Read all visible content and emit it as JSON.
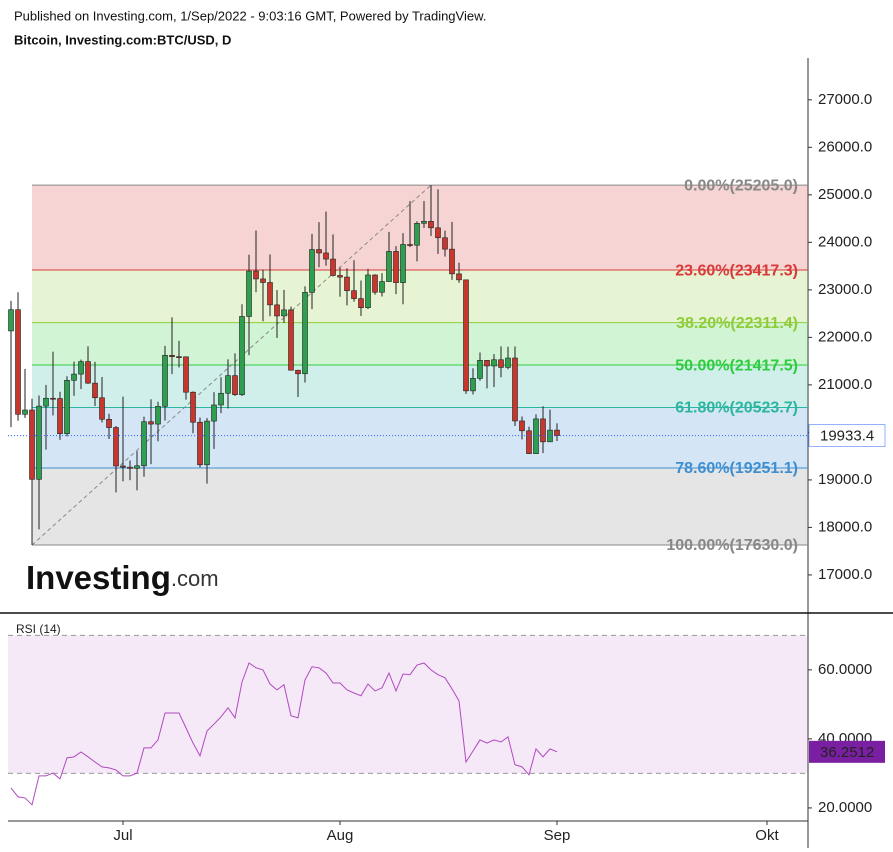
{
  "chart_data": [
    {
      "type": "candlestick",
      "title": "Published on Investing.com, 1/Sep/2022 - 9:03:16 GMT, Powered by TradingView.",
      "subtitle": "Bitcoin, Investing.com:BTC/USD, D",
      "logo": {
        "name": "Investing",
        "suffix": ".com"
      },
      "categories": [
        null,
        null,
        null,
        null,
        null,
        null,
        null,
        null,
        null,
        null,
        null,
        null,
        null,
        null,
        null,
        null,
        null,
        null,
        null,
        null,
        null,
        null,
        null,
        null,
        null,
        null,
        null,
        null,
        null,
        null,
        null,
        null,
        null,
        null,
        null,
        null,
        null,
        null,
        null,
        null,
        null,
        null,
        null,
        null,
        null,
        null,
        null,
        null,
        null,
        null,
        null,
        null,
        null,
        null,
        null,
        null,
        null,
        null,
        null,
        null,
        null,
        null,
        null,
        null,
        null,
        null,
        null,
        null,
        null,
        null,
        null,
        null,
        null,
        null,
        null,
        null,
        null,
        null,
        null
      ],
      "xlim": [
        -0.43,
        113.86
      ],
      "xticks": [
        {
          "value": 16,
          "label": "Jul"
        },
        {
          "value": 47,
          "label": "Aug"
        },
        {
          "value": 78,
          "label": "Sep"
        },
        {
          "value": 108,
          "label": "Okt"
        }
      ],
      "ylim": [
        16220,
        27880
      ],
      "yticks": [
        {
          "value": 17000,
          "label": "17000.0"
        },
        {
          "value": 18000,
          "label": "18000.0"
        },
        {
          "value": 19000,
          "label": "19000.0"
        },
        {
          "value": 20000,
          "label": "20000.0"
        },
        {
          "value": 21000,
          "label": "21000.0"
        },
        {
          "value": 22000,
          "label": "22000.0"
        },
        {
          "value": 23000,
          "label": "23000.0"
        },
        {
          "value": 24000,
          "label": "24000.0"
        },
        {
          "value": 25000,
          "label": "25000.0"
        },
        {
          "value": 26000,
          "label": "26000.0"
        },
        {
          "value": 27000,
          "label": "27000.0"
        }
      ],
      "up_color": "#2e9e4f",
      "down_color": "#c8372d",
      "last_price_color": "#2962ff",
      "open": [
        22136,
        22583,
        20381,
        20471,
        19013,
        20553,
        20719,
        20712,
        19973,
        21097,
        21227,
        21490,
        21037,
        20729,
        20276,
        20102,
        19293,
        19269,
        19243,
        19297,
        20225,
        20175,
        20548,
        21623,
        21594,
        21591,
        20846,
        20214,
        19318,
        20238,
        20577,
        20824,
        21195,
        20793,
        22440,
        23396,
        23230,
        23155,
        22684,
        22451,
        22579,
        21309,
        21234,
        22947,
        23849,
        23777,
        23648,
        23303,
        23269,
        22983,
        22816,
        22625,
        23313,
        22950,
        23175,
        23809,
        23153,
        23955,
        23940,
        24401,
        24443,
        24306,
        24097,
        23857,
        23337,
        23211,
        20874,
        21138,
        21517,
        21399,
        21529,
        21368,
        21565,
        20241,
        20034,
        19553,
        20284,
        19802,
        20048
      ],
      "high": [
        22770,
        22950,
        21336,
        20707,
        20776,
        21000,
        21700,
        20855,
        21182,
        21490,
        21532,
        21812,
        21485,
        21167,
        20392,
        20135,
        20754,
        19409,
        19603,
        20331,
        20698,
        20645,
        21822,
        22422,
        21928,
        21594,
        20864,
        20313,
        20301,
        20847,
        21161,
        21538,
        21663,
        22698,
        23741,
        24250,
        23425,
        23744,
        22996,
        23000,
        22648,
        21315,
        23075,
        24179,
        24425,
        24647,
        24166,
        23467,
        23454,
        23624,
        23197,
        23444,
        23328,
        23351,
        24220,
        23921,
        24194,
        24867,
        24443,
        24868,
        25205,
        25116,
        24247,
        24430,
        23573,
        23211,
        21350,
        21683,
        21519,
        21648,
        21810,
        21803,
        21809,
        20335,
        20120,
        20380,
        20550,
        20478,
        20191
      ],
      "low": [
        20111,
        20246,
        20305,
        17630,
        17958,
        19637,
        20358,
        19844,
        19916,
        20769,
        20913,
        21020,
        20554,
        20210,
        19861,
        18737,
        18970,
        18994,
        18781,
        19066,
        19331,
        19813,
        20249,
        21227,
        21367,
        20689,
        19982,
        19264,
        18923,
        19652,
        20405,
        20504,
        20768,
        20767,
        21626,
        22950,
        22340,
        22445,
        21988,
        22304,
        21329,
        20745,
        21049,
        22594,
        23478,
        23508,
        23282,
        22856,
        22673,
        22752,
        22451,
        22595,
        22898,
        22860,
        23175,
        22909,
        22697,
        23900,
        23600,
        24305,
        24132,
        23758,
        23700,
        23212,
        23150,
        20811,
        20798,
        21089,
        20926,
        20955,
        21161,
        21329,
        20135,
        19852,
        19600,
        19553,
        19564,
        19801,
        19820
      ],
      "close": [
        22583,
        20381,
        20471,
        19013,
        20553,
        20719,
        20712,
        19973,
        21097,
        21227,
        21490,
        21037,
        20729,
        20276,
        20102,
        19293,
        19269,
        19243,
        19297,
        20225,
        20175,
        20548,
        21623,
        21594,
        21591,
        20846,
        20214,
        19318,
        20238,
        20577,
        20824,
        21195,
        20793,
        22440,
        23396,
        23230,
        23155,
        22684,
        22451,
        22579,
        21309,
        21234,
        22947,
        23849,
        23777,
        23648,
        23303,
        23269,
        22983,
        22816,
        22625,
        23313,
        22950,
        23175,
        23809,
        23153,
        23955,
        23940,
        24401,
        24443,
        24306,
        24097,
        23857,
        23337,
        23211,
        20874,
        21138,
        21517,
        21399,
        21529,
        21368,
        21565,
        20241,
        20034,
        19553,
        20284,
        19802,
        20048,
        19933.4
      ],
      "fib_levels": [
        {
          "label": "0.00%(25205.0)",
          "value": 25205.0,
          "color": "#888888"
        },
        {
          "label": "23.60%(23417.3)",
          "value": 23417.3,
          "color": "#d83a3a"
        },
        {
          "label": "38.20%(22311.4)",
          "value": 22311.4,
          "color": "#8fcc3a"
        },
        {
          "label": "50.00%(21417.5)",
          "value": 21417.5,
          "color": "#2ecc40"
        },
        {
          "label": "61.80%(20523.7)",
          "value": 20523.7,
          "color": "#2cb5a0"
        },
        {
          "label": "78.60%(19251.1)",
          "value": 19251.1,
          "color": "#3d8fd1"
        },
        {
          "label": "100.00%(17630.0)",
          "value": 17630.0,
          "color": "#888888"
        }
      ]
    },
    {
      "type": "line",
      "title": "RSI (14)",
      "color": "#b04ac0",
      "ylim": [
        16.5,
        75.9
      ],
      "yticks": [
        {
          "value": 20,
          "label": "20.0000"
        },
        {
          "value": 40,
          "label": "40.0000"
        },
        {
          "value": 60,
          "label": "60.0000"
        }
      ],
      "levels": [
        30,
        70
      ],
      "values": [
        25.8,
        23.2,
        22.9,
        20.9,
        29.3,
        29.3,
        30.1,
        28.4,
        34.5,
        34.8,
        36.2,
        34.8,
        33.3,
        31.9,
        31.6,
        31.0,
        29.3,
        29.3,
        30.1,
        37.4,
        37.4,
        39.7,
        47.5,
        47.5,
        47.5,
        43.2,
        38.8,
        35.1,
        42.3,
        44.3,
        46.4,
        49.0,
        46.1,
        56.5,
        62.0,
        60.6,
        60.0,
        55.9,
        54.2,
        55.7,
        46.7,
        46.1,
        57.1,
        60.9,
        60.6,
        59.1,
        56.2,
        56.2,
        54.2,
        53.3,
        52.5,
        55.9,
        53.9,
        54.8,
        59.1,
        53.9,
        58.8,
        58.6,
        61.4,
        62.0,
        60.0,
        58.6,
        57.7,
        54.5,
        51.0,
        33.3,
        36.5,
        39.7,
        38.8,
        39.7,
        39.1,
        40.6,
        32.5,
        31.9,
        29.6,
        37.1,
        34.8,
        37.1,
        36.2512
      ]
    }
  ]
}
